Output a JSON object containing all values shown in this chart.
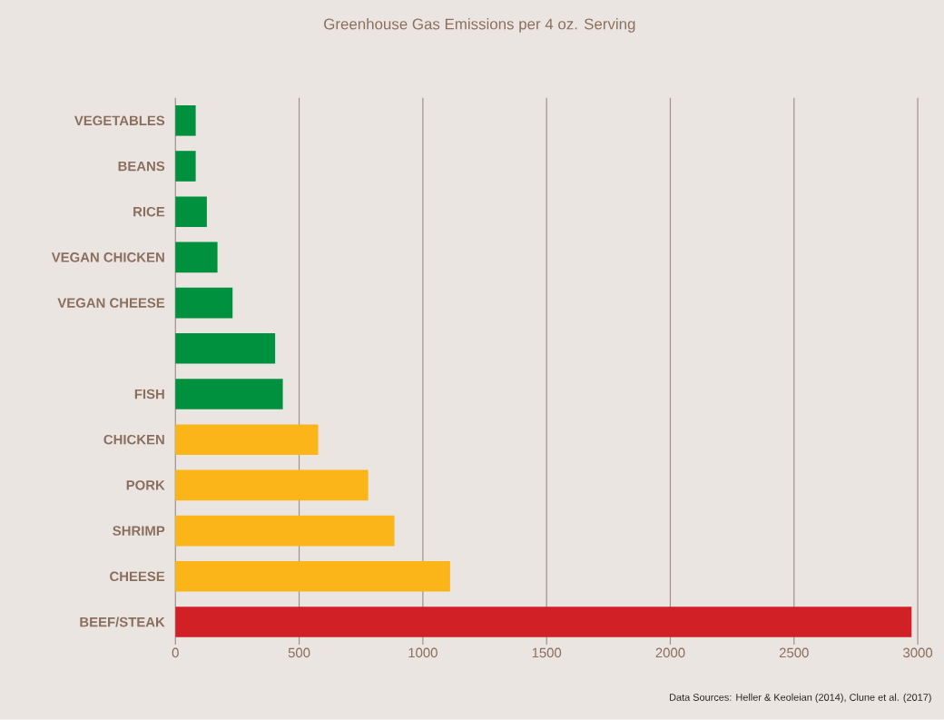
{
  "chart_data": {
    "type": "bar",
    "orientation": "horizontal",
    "title": "Greenhouse Gas Emissions per 4 oz. Serving",
    "categories": [
      "VEGETABLES",
      "BEANS",
      "RICE",
      "VEGAN CHICKEN",
      "VEGAN CHEESE",
      null,
      "FISH",
      "CHICKEN",
      "PORK",
      "SHRIMP",
      "CHEESE",
      "BEEF/STEAK"
    ],
    "values": [
      82,
      82,
      127,
      170,
      231,
      403,
      434,
      577,
      779,
      885,
      1110,
      2975
    ],
    "colors": [
      "#00913f",
      "#00913f",
      "#00913f",
      "#00913f",
      "#00913f",
      "#00913f",
      "#00913f",
      "#fbb519",
      "#fbb519",
      "#fbb519",
      "#fbb519",
      "#d12026"
    ],
    "xlim": [
      0,
      3000
    ],
    "xticks": [
      0,
      500,
      1000,
      1500,
      2000,
      2500,
      3000
    ],
    "grid": "x",
    "annotations": [
      "Data Sources: Heller & Keoleian (2014), Clune et al. (2017)"
    ]
  }
}
